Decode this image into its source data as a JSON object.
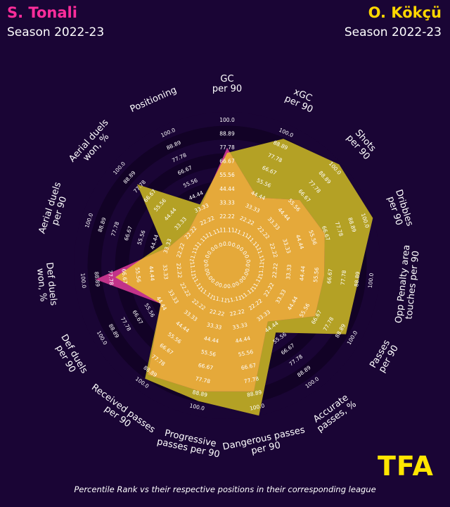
{
  "header": {
    "player1": {
      "name": "S. Tonali",
      "season": "Season 2022-23",
      "color": "#ff2d9b"
    },
    "player2": {
      "name": "O. Kökçü",
      "season": "Season 2022-23",
      "color": "#ffd700"
    }
  },
  "footer": {
    "text": "Percentile Rank vs their respective positions in their corresponding league"
  },
  "logo": {
    "text": "TFA"
  },
  "colors": {
    "background": "#1a0535",
    "ring_dark": "#120226",
    "tonali_fill": "#c2338a",
    "kokcu_fill": "#b4a125",
    "overlap_fill": "#e5a93a",
    "tick_text": "#ffffff"
  },
  "chart_data": {
    "type": "radar",
    "rmax": 100,
    "ring_labels": [
      "0.0",
      "11.11",
      "22.22",
      "33.33",
      "44.44",
      "55.56",
      "66.67",
      "77.78",
      "88.89",
      "100.0"
    ],
    "categories": [
      "GC\nper 90",
      "xGC\nper 90",
      "Shots\nper 90",
      "Dribbles\nper 90",
      "Opp Penalty area\ntouches per 90",
      "Passes\nper 90",
      "Accurate\npasses, %",
      "Dangerous passes\nper 90",
      "Progressive\npasses per 90",
      "Received passes\nper 90",
      "Def duels\nper 90",
      "Def duels\nwon, %",
      "Aerial duels\nper 90",
      "Aerial duels\nwon, %",
      "Positioning"
    ],
    "series": [
      {
        "name": "S. Tonali",
        "values": [
          71,
          36,
          55,
          59,
          55,
          58,
          32,
          80,
          80,
          85,
          38,
          83,
          25,
          18,
          28
        ]
      },
      {
        "name": "O. Kökçü",
        "values": [
          67,
          88,
          98,
          100,
          83,
          87,
          43,
          100,
          88,
          89,
          38,
          67,
          31,
          74,
          30
        ]
      }
    ]
  }
}
